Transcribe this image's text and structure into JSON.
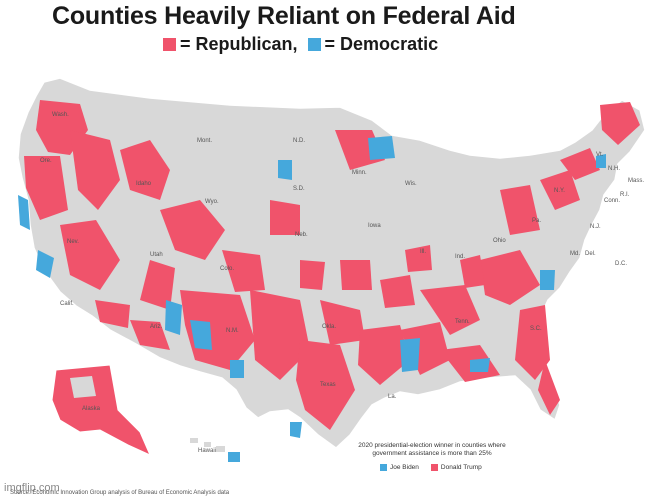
{
  "title": "Counties Heavily Reliant on Federal Aid",
  "legend": {
    "republican": "= Republican,",
    "democratic": "= Democratic"
  },
  "colors": {
    "republican": "#f0536b",
    "democratic": "#45a8dc",
    "other_counties": "#d8d8d8",
    "state_border": "#ffffff",
    "background": "#ffffff"
  },
  "state_labels": [
    "Wash.",
    "Ore.",
    "Idaho",
    "Mont.",
    "N.D.",
    "Minn.",
    "S.D.",
    "Wyo.",
    "Nev.",
    "Calif.",
    "Utah",
    "Colo.",
    "Neb.",
    "Iowa",
    "Wis.",
    "Ill.",
    "Ohio",
    "Ind.",
    "Pa.",
    "N.Y.",
    "Vt.",
    "N.H.",
    "Mass.",
    "R.I.",
    "Conn.",
    "N.J.",
    "Md.",
    "Del.",
    "D.C.",
    "Ariz.",
    "N.M.",
    "Texas",
    "Okla.",
    "Tenn.",
    "S.C.",
    "La.",
    "Alaska",
    "Hawaii"
  ],
  "note": {
    "text": "2020 presidential-election winner in counties where government assistance is more than 25%",
    "biden": "Joe Biden",
    "trump": "Donald Trump"
  },
  "source": "Source: Economic Innovation Group analysis of Bureau of Economic Analysis data",
  "watermark": "imgflip.com"
}
